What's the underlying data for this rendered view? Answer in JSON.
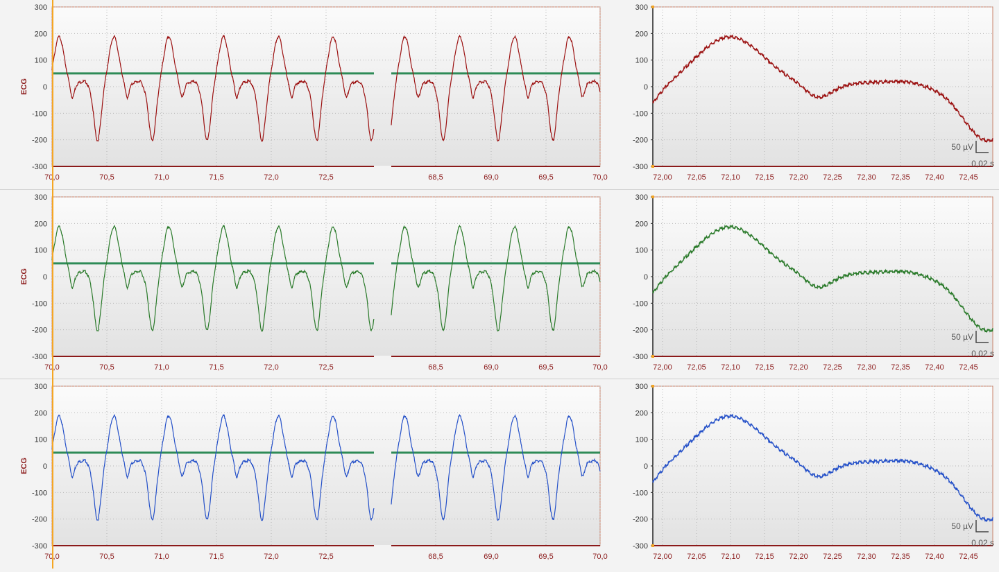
{
  "colors": {
    "background": "#f3f3f3",
    "plot_top": "#fbfbfb",
    "plot_bottom": "#e2e2e2",
    "frame": "#c8826a",
    "axis_text": "#8b1a1a",
    "cursor": "#f5a623",
    "threshold": "#2e8b57",
    "grid": "#b5b5b5"
  },
  "rows": [
    {
      "channel_label": "ECG",
      "trace_color": "#9b1111",
      "left_panel": {
        "y_ticks": [
          "300",
          "200",
          "100",
          "0",
          "-100",
          "-200",
          "-300"
        ],
        "x_ticks_seg1": [
          "70,0",
          "70,5",
          "71,0",
          "71,5",
          "72,0",
          "72,5"
        ],
        "x_ticks_seg2": [
          "68,5",
          "69,0",
          "69,5",
          "70,0"
        ]
      },
      "right_panel": {
        "y_ticks": [
          "300",
          "200",
          "100",
          "0",
          "-100",
          "-200",
          "-300"
        ],
        "x_ticks": [
          "72,00",
          "72,05",
          "72,10",
          "72,15",
          "72,20",
          "72,25",
          "72,30",
          "72,35",
          "72,40",
          "72,45"
        ],
        "scale_amp": "50 µV",
        "scale_time": "0,02 s"
      }
    },
    {
      "channel_label": "ECG",
      "trace_color": "#2a7a2a",
      "left_panel": {
        "y_ticks": [
          "300",
          "200",
          "100",
          "0",
          "-100",
          "-200",
          "-300"
        ],
        "x_ticks_seg1": [
          "70,0",
          "70,5",
          "71,0",
          "71,5",
          "72,0",
          "72,5"
        ],
        "x_ticks_seg2": [
          "68,5",
          "69,0",
          "69,5",
          "70,0"
        ]
      },
      "right_panel": {
        "y_ticks": [
          "300",
          "200",
          "100",
          "0",
          "-100",
          "-200",
          "-300"
        ],
        "x_ticks": [
          "72,00",
          "72,05",
          "72,10",
          "72,15",
          "72,20",
          "72,25",
          "72,30",
          "72,35",
          "72,40",
          "72,45"
        ],
        "scale_amp": "50 µV",
        "scale_time": "0,02 s"
      }
    },
    {
      "channel_label": "ECG",
      "trace_color": "#2450c8",
      "left_panel": {
        "y_ticks": [
          "300",
          "200",
          "100",
          "0",
          "-100",
          "-200",
          "-300"
        ],
        "x_ticks_seg1": [
          "70,0",
          "70,5",
          "71,0",
          "71,5",
          "72,0",
          "72,5"
        ],
        "x_ticks_seg2": [
          "68,5",
          "69,0",
          "69,5",
          "70,0"
        ]
      },
      "right_panel": {
        "y_ticks": [
          "300",
          "200",
          "100",
          "0",
          "-100",
          "-200",
          "-300"
        ],
        "x_ticks": [
          "72,00",
          "72,05",
          "72,10",
          "72,15",
          "72,20",
          "72,25",
          "72,30",
          "72,35",
          "72,40",
          "72,45"
        ],
        "scale_amp": "50 µV",
        "scale_time": "0,02 s"
      }
    }
  ],
  "threshold_value": 50,
  "y_range": [
    -300,
    300
  ]
}
